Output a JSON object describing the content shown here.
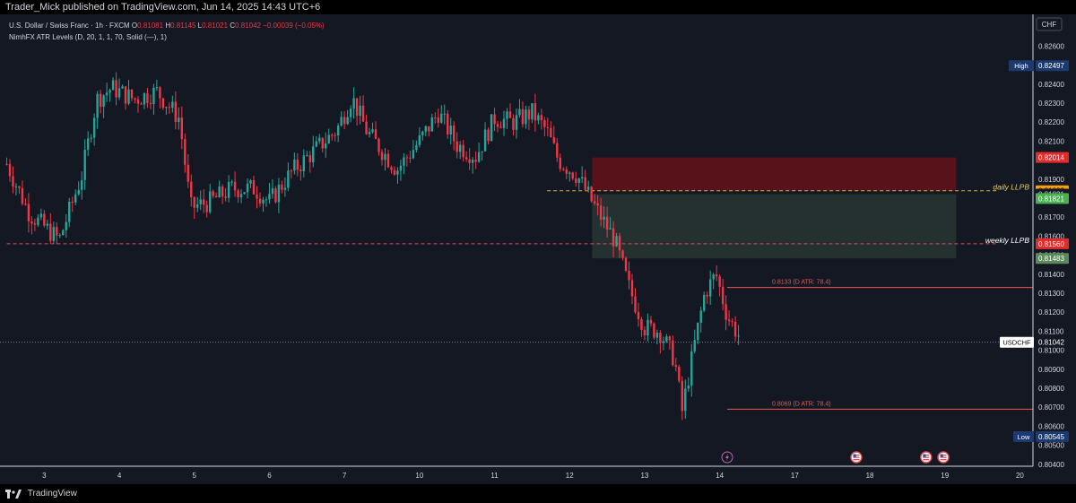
{
  "header": {
    "publisher_line": "Trader_Mick published on TradingView.com, Jun 14, 2025 14:43 UTC+6"
  },
  "legend": {
    "symbol": "U.S. Dollar / Swiss Franc · 1h · FXCM",
    "open_label": "O",
    "open": "0.81081",
    "high_label": "H",
    "high": "0.81145",
    "low_label": "L",
    "low": "0.81021",
    "close_label": "C",
    "close": "0.81042",
    "change": "−0.00039 (−0.05%)",
    "indicator": "NimhFX ATR Levels (D, 20, 1, 1, 70, Solid (—), 1)"
  },
  "footer": {
    "brand": "TradingView"
  },
  "colors": {
    "up": "#26a69a",
    "down": "#f23645",
    "supply_zone": "#5c1219",
    "demand_zone": "#253331",
    "daily_line": "#d4b23a",
    "weekly_line": "#d94a52",
    "atr_line": "#ef5350"
  },
  "chart_data": {
    "type": "candlestick",
    "currency_label": "CHF",
    "ylim": [
      0.8035,
      0.8285
    ],
    "y_ticks": [
      "0.80400",
      "0.80500",
      "0.80600",
      "0.80700",
      "0.80800",
      "0.80900",
      "0.81000",
      "0.81100",
      "0.81200",
      "0.81300",
      "0.81400",
      "0.81500",
      "0.81600",
      "0.81700",
      "0.81800",
      "0.81900",
      "0.82000",
      "0.82100",
      "0.82200",
      "0.82300",
      "0.82400",
      "0.82500",
      "0.82600"
    ],
    "x_ticks": [
      {
        "label": "3",
        "t": 0.5
      },
      {
        "label": "4",
        "t": 1.5
      },
      {
        "label": "5",
        "t": 2.5
      },
      {
        "label": "6",
        "t": 3.5
      },
      {
        "label": "7",
        "t": 4.5
      },
      {
        "label": "10",
        "t": 5.5
      },
      {
        "label": "11",
        "t": 6.5
      },
      {
        "label": "12",
        "t": 7.5
      },
      {
        "label": "13",
        "t": 8.5
      },
      {
        "label": "14",
        "t": 9.5
      },
      {
        "label": "17",
        "t": 10.5
      },
      {
        "label": "18",
        "t": 11.5
      },
      {
        "label": "19",
        "t": 12.5
      },
      {
        "label": "20",
        "t": 13.5
      }
    ],
    "candles_key_points": [
      {
        "t": 0.0,
        "p": 0.8198
      },
      {
        "t": 0.3,
        "p": 0.8172
      },
      {
        "t": 0.7,
        "p": 0.8158
      },
      {
        "t": 1.0,
        "p": 0.8192
      },
      {
        "t": 1.2,
        "p": 0.8232
      },
      {
        "t": 1.4,
        "p": 0.8238
      },
      {
        "t": 1.7,
        "p": 0.8232
      },
      {
        "t": 2.0,
        "p": 0.8236
      },
      {
        "t": 2.3,
        "p": 0.8222
      },
      {
        "t": 2.45,
        "p": 0.8175
      },
      {
        "t": 2.7,
        "p": 0.8178
      },
      {
        "t": 3.0,
        "p": 0.8185
      },
      {
        "t": 3.3,
        "p": 0.8185
      },
      {
        "t": 3.5,
        "p": 0.8178
      },
      {
        "t": 3.8,
        "p": 0.8194
      },
      {
        "t": 4.1,
        "p": 0.8205
      },
      {
        "t": 4.4,
        "p": 0.8216
      },
      {
        "t": 4.6,
        "p": 0.8233
      },
      {
        "t": 4.8,
        "p": 0.8215
      },
      {
        "t": 5.2,
        "p": 0.8195
      },
      {
        "t": 5.5,
        "p": 0.821
      },
      {
        "t": 5.75,
        "p": 0.8225
      },
      {
        "t": 6.0,
        "p": 0.8208
      },
      {
        "t": 6.25,
        "p": 0.8202
      },
      {
        "t": 6.5,
        "p": 0.8222
      },
      {
        "t": 6.75,
        "p": 0.822
      },
      {
        "t": 7.0,
        "p": 0.8225
      },
      {
        "t": 7.2,
        "p": 0.8215
      },
      {
        "t": 7.35,
        "p": 0.82
      },
      {
        "t": 7.6,
        "p": 0.8192
      },
      {
        "t": 7.8,
        "p": 0.8178
      },
      {
        "t": 7.95,
        "p": 0.8168
      },
      {
        "t": 8.1,
        "p": 0.8158
      },
      {
        "t": 8.3,
        "p": 0.8132
      },
      {
        "t": 8.5,
        "p": 0.8112
      },
      {
        "t": 8.7,
        "p": 0.811
      },
      {
        "t": 8.9,
        "p": 0.8095
      },
      {
        "t": 9.0,
        "p": 0.8068
      },
      {
        "t": 9.15,
        "p": 0.81
      },
      {
        "t": 9.3,
        "p": 0.813
      },
      {
        "t": 9.45,
        "p": 0.814
      },
      {
        "t": 9.6,
        "p": 0.8118
      },
      {
        "t": 9.78,
        "p": 0.8106
      }
    ],
    "zones": [
      {
        "name": "supply-zone",
        "top": 0.82014,
        "bottom": 0.81839,
        "t_start": 7.8,
        "t_end": 12.65
      },
      {
        "name": "demand-zone",
        "top": 0.81821,
        "bottom": 0.81483,
        "t_start": 7.8,
        "t_end": 12.65
      }
    ],
    "levels": [
      {
        "name": "daily LLPB",
        "price": 0.81839,
        "t_start": 7.2,
        "t_end": 13.2,
        "style": "dashed",
        "color": "#d4b23a"
      },
      {
        "name": "weekly LLPB",
        "price": 0.8156,
        "t_start": 0.0,
        "t_end": 13.2,
        "style": "dashed",
        "color": "#d94a52"
      },
      {
        "name": "0.8133 (D ATR: 78.4)",
        "price": 0.8133,
        "t_start": 9.6,
        "t_end": 13.68,
        "style": "solid",
        "color": "#ef5350"
      },
      {
        "name": "0.8069 (D ATR: 78.4)",
        "price": 0.8069,
        "t_start": 9.6,
        "t_end": 13.68,
        "style": "solid",
        "color": "#ef5350"
      }
    ],
    "price_labels": [
      {
        "text": "0.82497",
        "price": 0.82497,
        "bg": "#1c3a6e",
        "fg": "#ffffff",
        "tag": "High"
      },
      {
        "text": "0.82014",
        "price": 0.82014,
        "bg": "#e22b2b",
        "fg": "#ffffff"
      },
      {
        "text": "0.81839",
        "price": 0.81839,
        "bg": "#f59f0b",
        "fg": "#000000"
      },
      {
        "text": "0.81821",
        "price": 0.81821,
        "bg": "#141823",
        "fg": "#d1d4dc"
      },
      {
        "text": "0.81821",
        "price": 0.81798,
        "bg": "#4caf50",
        "fg": "#ffffff"
      },
      {
        "text": "0.81560",
        "price": 0.8156,
        "bg": "#e22b2b",
        "fg": "#ffffff"
      },
      {
        "text": "0.81483",
        "price": 0.81483,
        "bg": "#5a8a5a",
        "fg": "#ffffff"
      },
      {
        "text": "0.81042",
        "price": 0.81042,
        "bg": "#141823",
        "fg": "#ffffff",
        "tag": "USDCHF"
      },
      {
        "text": "0.80545",
        "price": 0.80545,
        "bg": "#1c3a6e",
        "fg": "#ffffff",
        "tag": "Low"
      }
    ],
    "current_price": 0.81042,
    "event_markers": [
      {
        "icon": "lightning-icon",
        "t": 9.6
      },
      {
        "icon": "us-flag-icon",
        "t": 11.32
      },
      {
        "icon": "us-flag-icon",
        "t": 12.25
      },
      {
        "icon": "us-flag-icon",
        "t": 12.48
      }
    ]
  }
}
